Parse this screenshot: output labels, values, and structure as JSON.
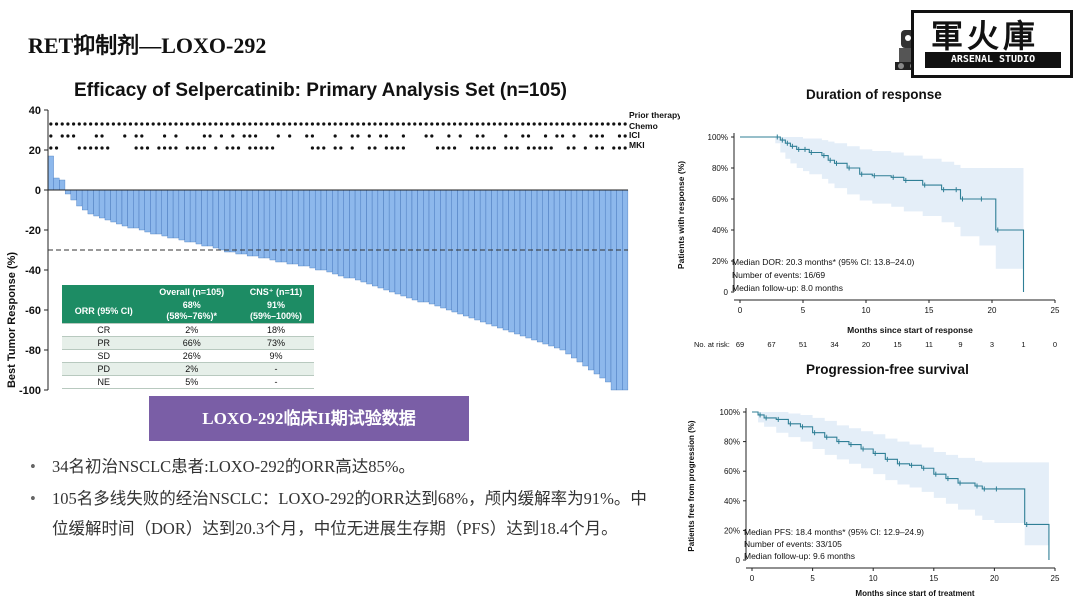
{
  "slide": {
    "title": "RET抑制剂—LOXO-292",
    "logo": {
      "chinese": "軍火庫",
      "english": "ARSENAL STUDIO"
    },
    "banner": "LOXO-292临床II期试验数据",
    "bullets": [
      "34名初治NSCLC患者:LOXO-292的ORR高达85%。",
      "105名多线失败的经治NSCLC：LOXO-292的ORR达到68%，颅内缓解率为91%。中位缓解时间（DOR）达到20.3个月，中位无进展生存期（PFS）达到18.4个月。"
    ]
  },
  "colors": {
    "bar": "#8db8ec",
    "bar_edge": "#3c6fb8",
    "table_header": "#1d8c64",
    "banner": "#7a5ea6",
    "ci_band": "#e4eef8",
    "km_line": "#2f7f96"
  },
  "chart_data": [
    {
      "type": "bar",
      "name": "waterfall",
      "title": "Efficacy of Selpercatinib: Primary Analysis Set (n=105)",
      "xlabel": "",
      "ylabel": "Best Tumor Response (%)",
      "ylim": [
        -100,
        40
      ],
      "yticks": [
        40,
        20,
        0,
        -20,
        -40,
        -60,
        -80,
        -100
      ],
      "reference_line": -30,
      "values": [
        17,
        6,
        5,
        -2,
        -5,
        -8,
        -10,
        -12,
        -13,
        -14,
        -15,
        -16,
        -17,
        -18,
        -19,
        -19,
        -20,
        -21,
        -22,
        -22,
        -23,
        -24,
        -24,
        -25,
        -26,
        -26,
        -27,
        -28,
        -28,
        -29,
        -30,
        -31,
        -31,
        -32,
        -32,
        -33,
        -33,
        -34,
        -34,
        -35,
        -36,
        -36,
        -37,
        -37,
        -38,
        -38,
        -39,
        -40,
        -40,
        -41,
        -42,
        -43,
        -44,
        -44,
        -45,
        -46,
        -47,
        -48,
        -49,
        -50,
        -51,
        -52,
        -53,
        -54,
        -55,
        -56,
        -56,
        -57,
        -58,
        -59,
        -60,
        -61,
        -62,
        -63,
        -64,
        -65,
        -66,
        -67,
        -68,
        -69,
        -70,
        -71,
        -72,
        -73,
        -74,
        -75,
        -76,
        -77,
        -78,
        -79,
        -80,
        -82,
        -84,
        -86,
        -88,
        -90,
        -92,
        -94,
        -96,
        -100,
        -100,
        -100
      ],
      "prior_therapy_legend": [
        "Prior therapy",
        "Chemo",
        "ICI",
        "MKI"
      ],
      "prior_therapy_rows": [
        "111111111111111111111111111111111111111111111111111111111111111111111111111111111111111111111111111111111111",
        "101110001100010110001010000110101011100010100110001001101011001000110010100110001001100101101001110011001001",
        "110001111110000111011110111101011101111100000011101101001101111000001111001111101110111110011010110111000100"
      ],
      "table": {
        "col_headers": [
          "",
          "Overall (n=105)",
          "CNS⁺ (n=11)"
        ],
        "orr_row": {
          "label": "ORR (95% CI)",
          "overall": "68%",
          "overall_ci": "(58%–76%)*",
          "cns": "91%",
          "cns_ci": "(59%–100%)"
        },
        "rows": [
          {
            "label": "CR",
            "overall": "2%",
            "cns": "18%"
          },
          {
            "label": "PR",
            "overall": "66%",
            "cns": "73%"
          },
          {
            "label": "SD",
            "overall": "26%",
            "cns": "9%"
          },
          {
            "label": "PD",
            "overall": "2%",
            "cns": "-"
          },
          {
            "label": "NE",
            "overall": "5%",
            "cns": "-"
          }
        ]
      }
    },
    {
      "type": "line",
      "name": "duration_of_response",
      "title": "Duration of response",
      "xlabel": "Months since start of response",
      "ylabel": "Patients with response (%)",
      "xlim": [
        0,
        25
      ],
      "ylim": [
        0,
        100
      ],
      "xticks": [
        0,
        5,
        10,
        15,
        20,
        25
      ],
      "yticks": [
        0,
        20,
        40,
        60,
        80,
        100
      ],
      "ytick_labels": [
        "0",
        "20%",
        "40%",
        "60%",
        "80%",
        "100%"
      ],
      "x": [
        0,
        2.8,
        3.2,
        3.6,
        4,
        4.5,
        5,
        5.5,
        6.5,
        7,
        7.5,
        8.5,
        9.5,
        10.5,
        12,
        13,
        14.5,
        16,
        17,
        17.5,
        19,
        20.3,
        22.5
      ],
      "y": [
        100,
        100,
        98,
        96,
        94,
        92,
        92,
        90,
        88,
        85,
        83,
        80,
        76,
        75,
        74,
        72,
        69,
        66,
        66,
        60,
        60,
        40,
        0
      ],
      "ci_upper": [
        100,
        100,
        100,
        100,
        100,
        100,
        99,
        99,
        98,
        97,
        96,
        94,
        92,
        91,
        90,
        88,
        86,
        84,
        82,
        80,
        80,
        80,
        80
      ],
      "ci_lower": [
        100,
        96,
        90,
        86,
        83,
        80,
        78,
        76,
        73,
        70,
        67,
        63,
        59,
        57,
        55,
        52,
        49,
        45,
        42,
        36,
        30,
        15,
        0
      ],
      "annotations": [
        "Median DOR: 20.3 months* (95% CI: 13.8–24.0)",
        "Number of events: 16/69",
        "Median follow-up: 8.0 months"
      ],
      "at_risk_label": "No. at risk:",
      "at_risk": [
        "69",
        "67",
        "51",
        "34",
        "20",
        "15",
        "11",
        "9",
        "3",
        "1",
        "0"
      ]
    },
    {
      "type": "line",
      "name": "progression_free_survival",
      "title": "Progression-free survival",
      "xlabel": "Months since start of treatment",
      "ylabel": "Patients free from progression (%)",
      "xlim": [
        0,
        25
      ],
      "ylim": [
        0,
        100
      ],
      "xticks": [
        0,
        5,
        10,
        15,
        20,
        25
      ],
      "yticks": [
        0,
        20,
        40,
        60,
        80,
        100
      ],
      "ytick_labels": [
        "0",
        "20%",
        "40%",
        "60%",
        "80%",
        "100%"
      ],
      "x": [
        0,
        0.5,
        1,
        2,
        3,
        4,
        5,
        6,
        7,
        8,
        9,
        10,
        11,
        12,
        13,
        14,
        15,
        16,
        17,
        18.4,
        19,
        20,
        22.5,
        24.5
      ],
      "y": [
        100,
        98,
        96,
        95,
        92,
        90,
        86,
        83,
        80,
        78,
        75,
        72,
        68,
        65,
        64,
        62,
        58,
        55,
        52,
        50,
        48,
        48,
        24,
        0
      ],
      "ci_upper": [
        100,
        100,
        100,
        100,
        99,
        98,
        96,
        94,
        91,
        89,
        87,
        85,
        82,
        80,
        78,
        76,
        73,
        71,
        69,
        67,
        66,
        66,
        66,
        66
      ],
      "ci_lower": [
        100,
        93,
        90,
        86,
        83,
        80,
        75,
        71,
        68,
        65,
        62,
        58,
        54,
        51,
        49,
        46,
        42,
        38,
        34,
        30,
        27,
        25,
        10,
        0
      ],
      "annotations": [
        "Median PFS: 18.4 months* (95% CI: 12.9–24.9)",
        "Number of events: 33/105",
        "Median follow-up: 9.6 months"
      ]
    }
  ]
}
